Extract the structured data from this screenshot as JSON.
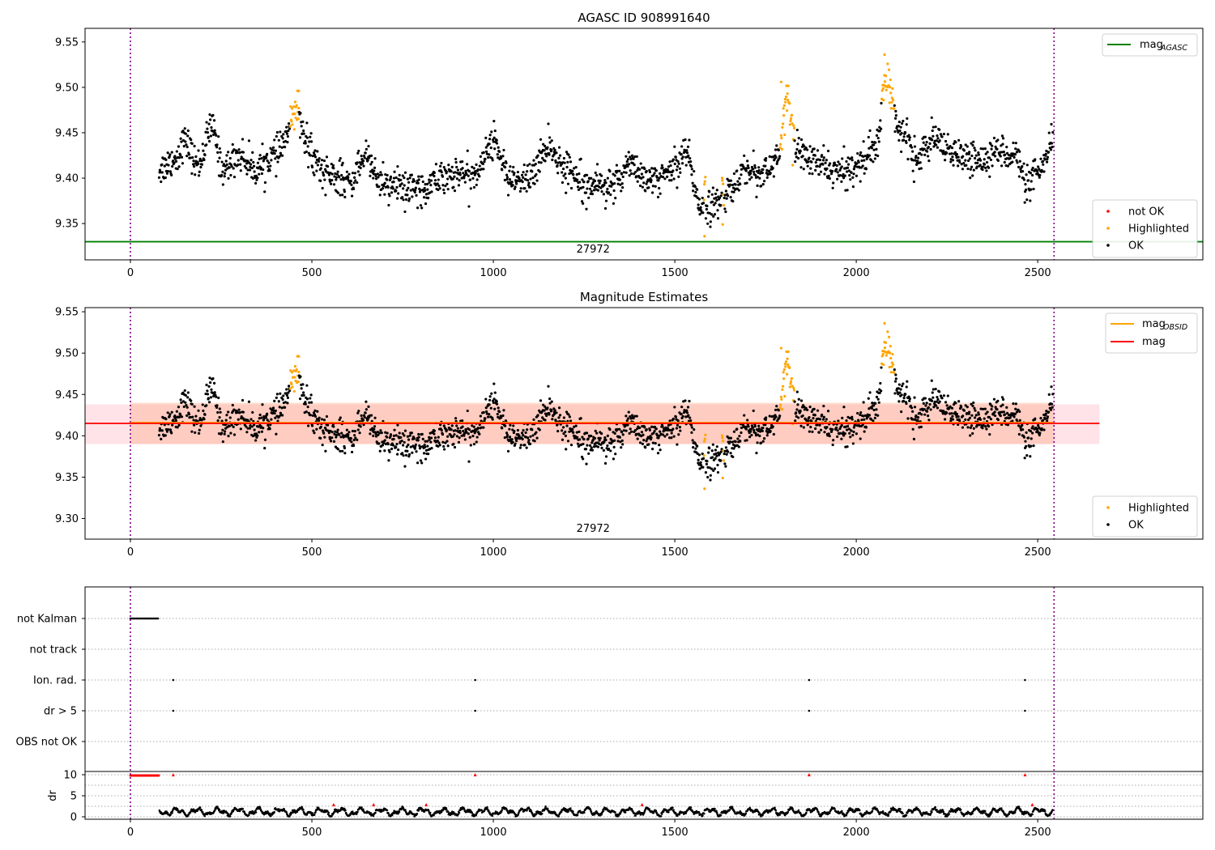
{
  "chart_data": [
    {
      "type": "scatter",
      "title": "AGASC ID 908991640",
      "xlabel": "",
      "ylabel": "",
      "xlim": [
        -125,
        2955
      ],
      "ylim": [
        9.31,
        9.565
      ],
      "xticks": [
        0,
        500,
        1000,
        1500,
        2000,
        2500
      ],
      "yticks": [
        9.35,
        9.4,
        9.45,
        9.5,
        9.55
      ],
      "vlines": [
        0,
        2545
      ],
      "hline_value": 9.33,
      "obsid_label": "27972",
      "obsid_label_x": 1275,
      "x_range": [
        79,
        2542
      ],
      "highlight_x_ranges": [
        [
          440,
          465
        ],
        [
          1790,
          1830
        ],
        [
          2070,
          2105
        ],
        [
          1580,
          1585
        ],
        [
          1630,
          1635
        ]
      ],
      "lines": [
        {
          "name": "mag_AGASC",
          "value": 9.33,
          "color": "#008000"
        }
      ],
      "line_legend": {
        "main": "mag",
        "sub": "AGASC"
      },
      "legend": [
        "not OK",
        "Highlighted",
        "OK"
      ],
      "legend_placement": [
        "upper-right",
        "lower-right"
      ]
    },
    {
      "type": "scatter",
      "title": "Magnitude Estimates",
      "xlabel": "",
      "ylabel": "",
      "xlim": [
        -125,
        2955
      ],
      "ylim": [
        9.275,
        9.555
      ],
      "xticks": [
        0,
        500,
        1000,
        1500,
        2000,
        2500
      ],
      "yticks": [
        9.3,
        9.35,
        9.4,
        9.45,
        9.5,
        9.55
      ],
      "vlines": [
        0,
        2545
      ],
      "obsid_label": "27972",
      "obsid_label_x": 1275,
      "mag_value": 9.415,
      "mag_band": [
        9.39,
        9.438
      ],
      "mag_band_x": [
        -125,
        2670
      ],
      "obsid_band": [
        9.39,
        9.44
      ],
      "obsid_band_x": [
        0,
        2545
      ],
      "line_legend": [
        {
          "main": "mag",
          "sub": "OBSID",
          "color": "#ffa500"
        },
        {
          "main": "mag",
          "sub": "",
          "color": "#ff0000"
        }
      ],
      "legend": [
        "Highlighted",
        "OK"
      ],
      "legend_placement": [
        "upper-right",
        "lower-right"
      ]
    },
    {
      "type": "scatter",
      "title": "",
      "xlim": [
        -125,
        2955
      ],
      "xticks": [
        0,
        500,
        1000,
        1500,
        2000,
        2500
      ],
      "flag_categories": [
        "not Kalman",
        "not track",
        "Ion. rad.",
        "dr > 5",
        "OBS not OK"
      ],
      "flag_rows": {
        "not Kalman": {
          "x_range": [
            0,
            78
          ],
          "step": 4
        },
        "not track": [],
        "Ion. rad.": [
          118,
          950,
          1870,
          2465
        ],
        "dr > 5": [
          118,
          950,
          1870,
          2465
        ],
        "OBS not OK": []
      },
      "dr_ylabel": "dr",
      "dr_ylim": [
        -0.5,
        10.5
      ],
      "dr_yticks": [
        0,
        5,
        10
      ],
      "dr_clip_value": 10,
      "dr_clipped_x": [
        118,
        950,
        1870,
        2465
      ],
      "dr_clipped_x_range": [
        0,
        78
      ],
      "dr_red_x": [
        560,
        670,
        815,
        1410,
        2485
      ]
    }
  ]
}
